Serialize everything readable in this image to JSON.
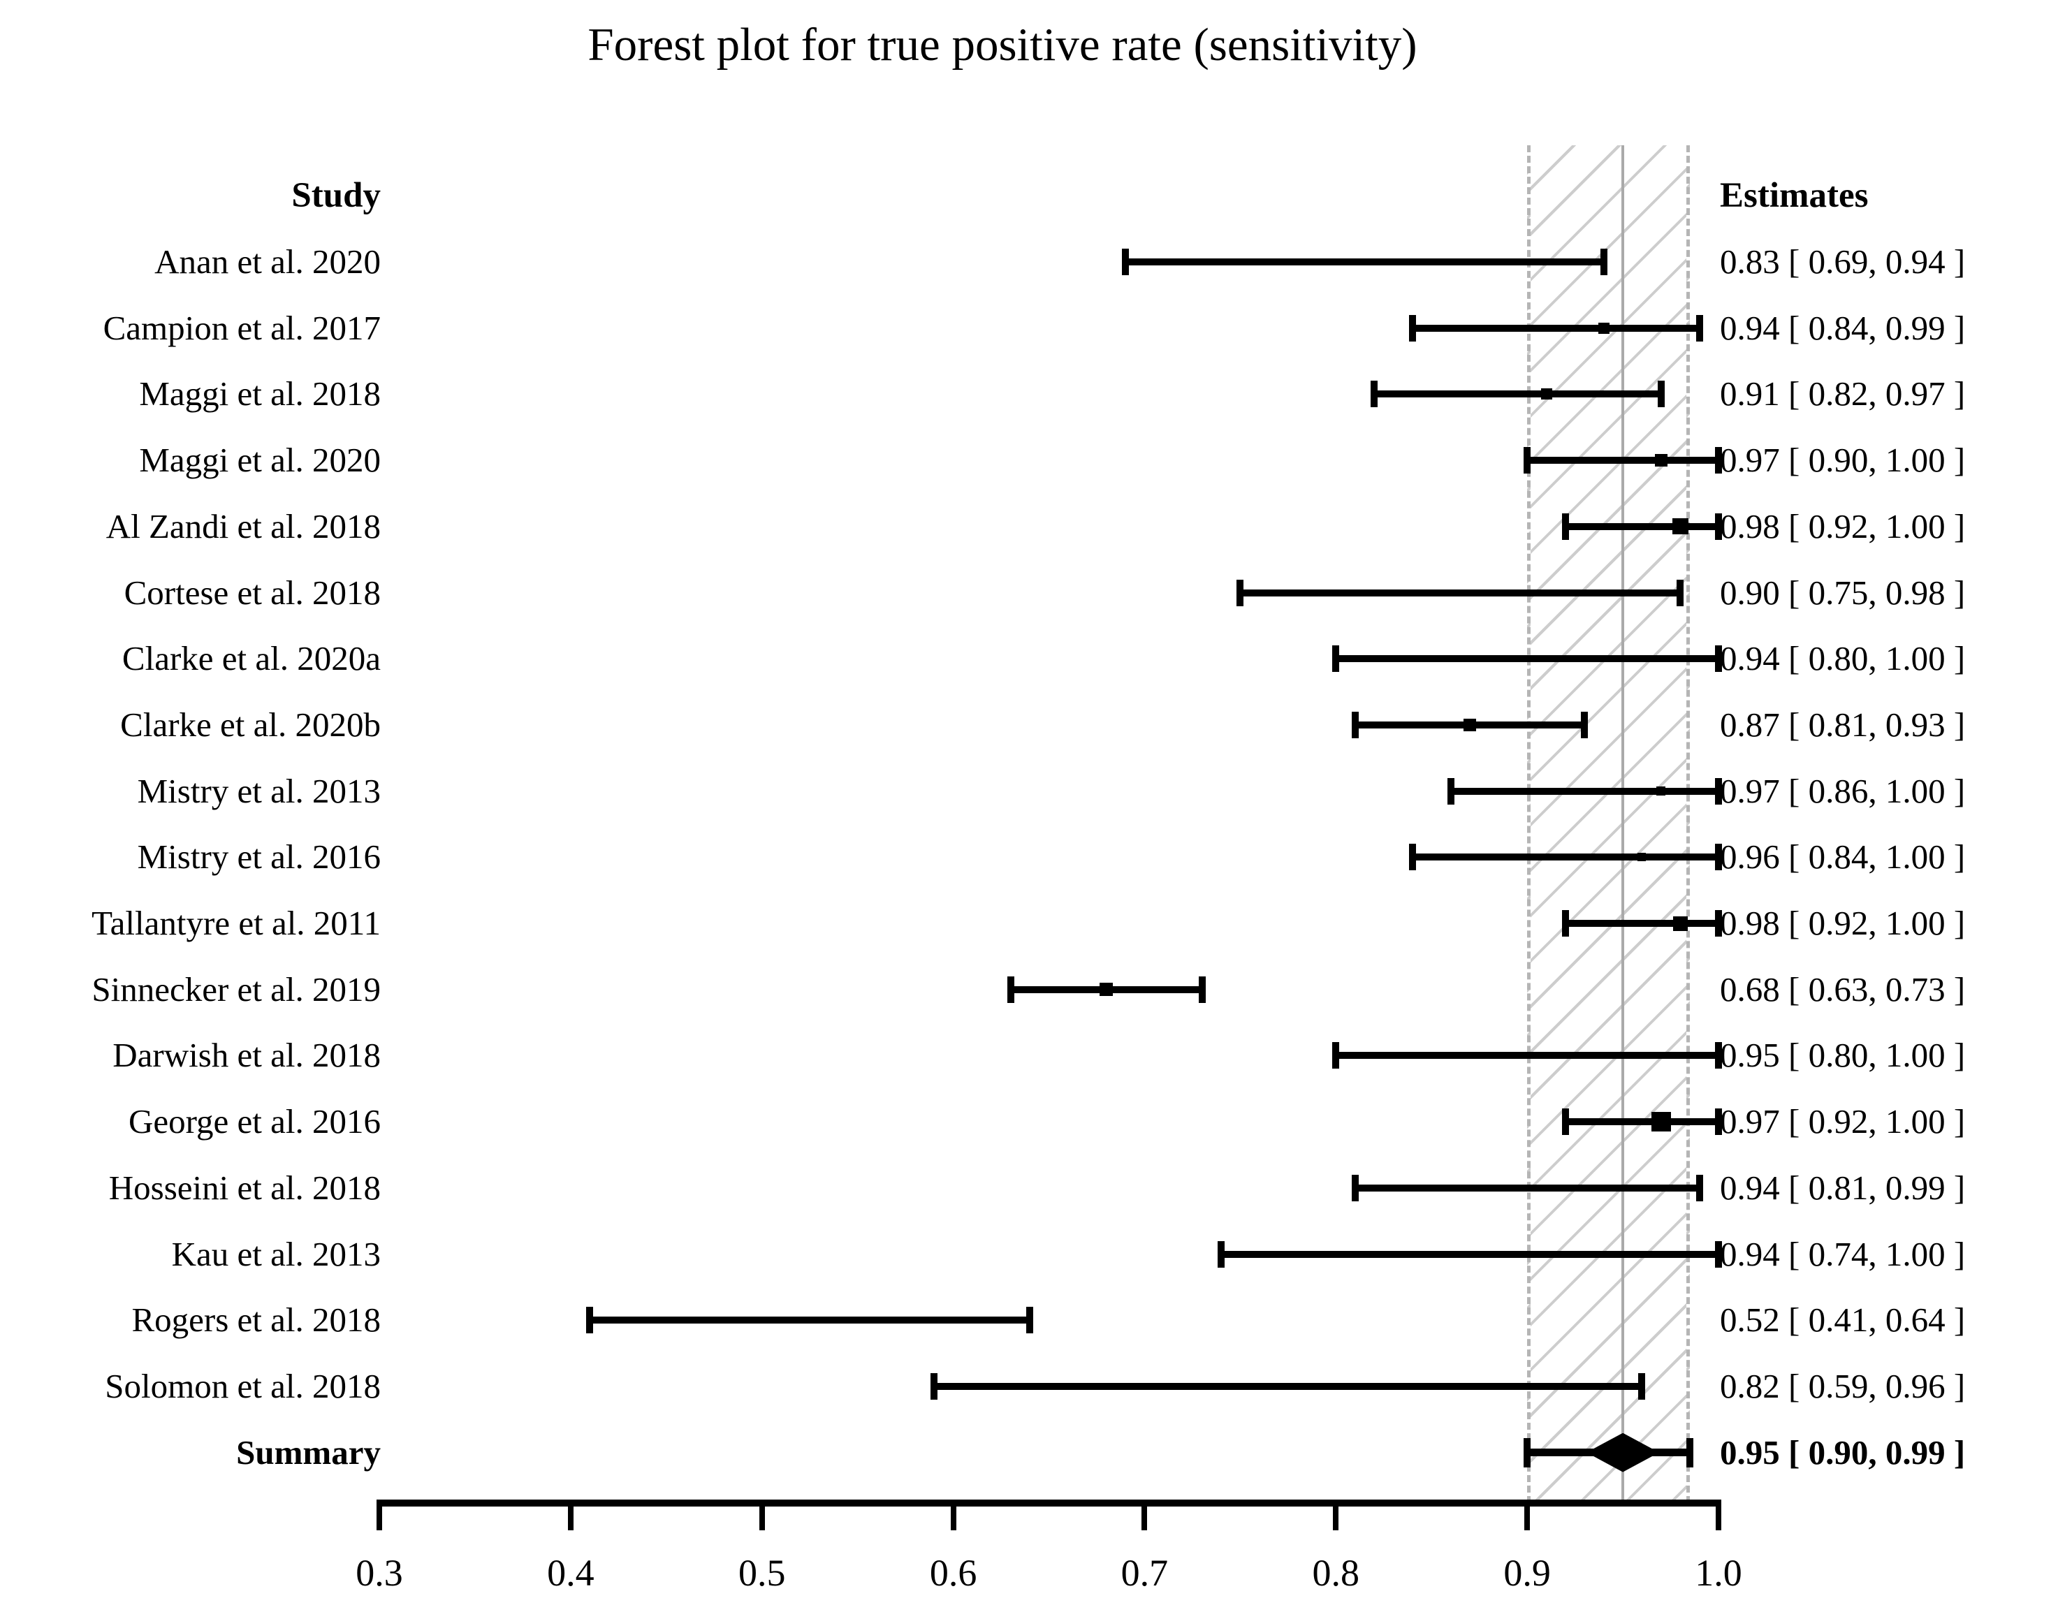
{
  "title": "Forest plot for true positive rate (sensitivity)",
  "columns": {
    "study": "Study",
    "estimates": "Estimates"
  },
  "colors": {
    "text": "#000000",
    "marker": "#000000",
    "hatch_line": "#cdcdcd",
    "band_border": "#b5b5b5",
    "null_line": "#aaaaaa"
  },
  "chart_data": {
    "type": "forest",
    "title": "Forest plot for true positive rate (sensitivity)",
    "xlabel": "",
    "xlim": [
      0.3,
      1.0
    ],
    "x_tick_labels": [
      "0.3",
      "0.4",
      "0.5",
      "0.6",
      "0.7",
      "0.8",
      "0.9",
      "1.0"
    ],
    "x_tick_values": [
      0.3,
      0.4,
      0.5,
      0.6,
      0.7,
      0.8,
      0.9,
      1.0
    ],
    "grid": "off",
    "summary_region": {
      "band_lower": 0.9,
      "band_upper": 0.985,
      "vertical_line": 0.95
    },
    "studies": [
      {
        "label": "Anan et al. 2020",
        "estimate": 0.83,
        "ci_lower": 0.69,
        "ci_upper": 0.94,
        "estimate_label": "0.83 [ 0.69, 0.94 ]",
        "marker_size": 8
      },
      {
        "label": "Campion et al. 2017",
        "estimate": 0.94,
        "ci_lower": 0.84,
        "ci_upper": 0.99,
        "estimate_label": "0.94 [ 0.84, 0.99 ]",
        "marker_size": 16
      },
      {
        "label": "Maggi et al. 2018",
        "estimate": 0.91,
        "ci_lower": 0.82,
        "ci_upper": 0.97,
        "estimate_label": "0.91 [ 0.82, 0.97 ]",
        "marker_size": 16
      },
      {
        "label": "Maggi et al. 2020",
        "estimate": 0.97,
        "ci_lower": 0.9,
        "ci_upper": 1.0,
        "estimate_label": "0.97 [ 0.90, 1.00 ]",
        "marker_size": 18
      },
      {
        "label": "Al Zandi et al. 2018",
        "estimate": 0.98,
        "ci_lower": 0.92,
        "ci_upper": 1.0,
        "estimate_label": "0.98 [ 0.92, 1.00 ]",
        "marker_size": 23
      },
      {
        "label": "Cortese et al. 2018",
        "estimate": 0.9,
        "ci_lower": 0.75,
        "ci_upper": 0.98,
        "estimate_label": "0.90 [ 0.75, 0.98 ]",
        "marker_size": 10
      },
      {
        "label": "Clarke et al. 2020a",
        "estimate": 0.94,
        "ci_lower": 0.8,
        "ci_upper": 1.0,
        "estimate_label": "0.94 [ 0.80, 1.00 ]",
        "marker_size": 9
      },
      {
        "label": "Clarke et al. 2020b",
        "estimate": 0.87,
        "ci_lower": 0.81,
        "ci_upper": 0.93,
        "estimate_label": "0.87 [ 0.81, 0.93 ]",
        "marker_size": 18
      },
      {
        "label": "Mistry et al. 2013",
        "estimate": 0.97,
        "ci_lower": 0.86,
        "ci_upper": 1.0,
        "estimate_label": "0.97 [ 0.86, 1.00 ]",
        "marker_size": 13
      },
      {
        "label": "Mistry et al. 2016",
        "estimate": 0.96,
        "ci_lower": 0.84,
        "ci_upper": 1.0,
        "estimate_label": "0.96 [ 0.84, 1.00 ]",
        "marker_size": 12
      },
      {
        "label": "Tallantyre et al. 2011",
        "estimate": 0.98,
        "ci_lower": 0.92,
        "ci_upper": 1.0,
        "estimate_label": "0.98 [ 0.92, 1.00 ]",
        "marker_size": 21
      },
      {
        "label": "Sinnecker et al. 2019",
        "estimate": 0.68,
        "ci_lower": 0.63,
        "ci_upper": 0.73,
        "estimate_label": "0.68 [ 0.63, 0.73 ]",
        "marker_size": 19
      },
      {
        "label": "Darwish et al. 2018",
        "estimate": 0.95,
        "ci_lower": 0.8,
        "ci_upper": 1.0,
        "estimate_label": "0.95 [ 0.80, 1.00 ]",
        "marker_size": 8
      },
      {
        "label": "George et al. 2016",
        "estimate": 0.97,
        "ci_lower": 0.92,
        "ci_upper": 1.0,
        "estimate_label": "0.97 [ 0.92, 1.00 ]",
        "marker_size": 28
      },
      {
        "label": "Hosseini et al. 2018",
        "estimate": 0.94,
        "ci_lower": 0.81,
        "ci_upper": 0.99,
        "estimate_label": "0.94 [ 0.81, 0.99 ]",
        "marker_size": 10
      },
      {
        "label": "Kau et al. 2013",
        "estimate": 0.94,
        "ci_lower": 0.74,
        "ci_upper": 1.0,
        "estimate_label": "0.94 [ 0.74, 1.00 ]",
        "marker_size": 8
      },
      {
        "label": "Rogers et al. 2018",
        "estimate": 0.52,
        "ci_lower": 0.41,
        "ci_upper": 0.64,
        "estimate_label": "0.52 [ 0.41, 0.64 ]",
        "marker_size": 9
      },
      {
        "label": "Solomon et al. 2018",
        "estimate": 0.82,
        "ci_lower": 0.59,
        "ci_upper": 0.96,
        "estimate_label": "0.82 [ 0.59, 0.96 ]",
        "marker_size": 7
      }
    ],
    "summary": {
      "label": "Summary",
      "estimate": 0.95,
      "ci_lower": 0.9,
      "ci_upper": 0.99,
      "estimate_label": "0.95 [ 0.90, 0.99 ]",
      "drawn_whisker_upper": 0.985
    }
  }
}
